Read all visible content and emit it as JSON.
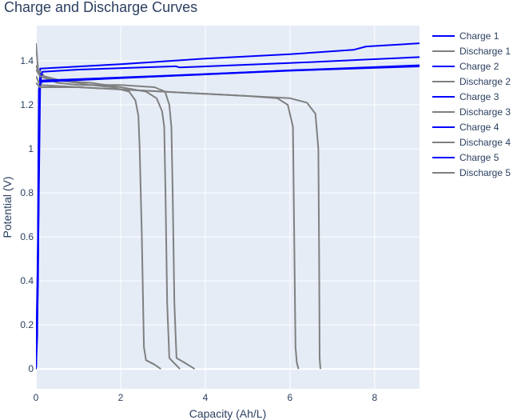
{
  "chart_data": {
    "type": "line",
    "title": "Charge and Discharge Curves",
    "xlabel": "Capacity (Ah/L)",
    "ylabel": "Potential (V)",
    "xlim": [
      0,
      9.06
    ],
    "ylim": [
      -0.09,
      1.56
    ],
    "xticks": [
      0,
      2,
      4,
      6,
      8
    ],
    "yticks": [
      0,
      0.2,
      0.4,
      0.6,
      0.8,
      1,
      1.2,
      1.4
    ],
    "ytick_labels": [
      "0",
      "0.2",
      "0.4",
      "0.6",
      "0.8",
      "1",
      "1.2",
      "1.4"
    ],
    "grid": true,
    "legend_position": "right",
    "colors": {
      "charge": "#0000ff",
      "discharge": "#808080",
      "plot_bg": "#e5ecf6"
    },
    "series": [
      {
        "name": "Charge 1",
        "kind": "charge",
        "x": [
          0,
          0.05,
          0.08,
          0.1,
          2,
          4,
          6,
          7.5,
          7.8,
          9.1
        ],
        "y": [
          0,
          0.4,
          1.2,
          1.365,
          1.385,
          1.41,
          1.43,
          1.45,
          1.465,
          1.48
        ]
      },
      {
        "name": "Discharge 1",
        "kind": "discharge",
        "x": [
          0,
          0.05,
          0.2,
          0.6,
          1.3,
          1.8,
          2.2,
          2.35,
          2.42,
          2.45,
          2.5,
          2.55,
          2.6,
          2.8,
          2.95
        ],
        "y": [
          1.48,
          1.36,
          1.33,
          1.31,
          1.29,
          1.28,
          1.26,
          1.22,
          1.15,
          1.0,
          0.6,
          0.1,
          0.04,
          0.02,
          0
        ]
      },
      {
        "name": "Charge 2",
        "kind": "charge",
        "x": [
          0,
          0.05,
          0.1,
          0.15,
          1,
          3.3,
          3.4,
          6,
          9.1
        ],
        "y": [
          0,
          0.5,
          1.3,
          1.35,
          1.36,
          1.375,
          1.37,
          1.39,
          1.417
        ]
      },
      {
        "name": "Discharge 2",
        "kind": "discharge",
        "x": [
          0,
          0.1,
          0.5,
          1.3,
          2.0,
          2.6,
          2.85,
          2.98,
          3.03,
          3.06,
          3.1,
          3.15,
          3.3,
          3.4
        ],
        "y": [
          1.38,
          1.33,
          1.31,
          1.3,
          1.28,
          1.26,
          1.23,
          1.17,
          1.1,
          0.8,
          0.3,
          0.05,
          0.02,
          0
        ]
      },
      {
        "name": "Charge 3",
        "kind": "charge",
        "x": [
          0,
          0.04,
          0.08,
          0.12,
          3,
          6,
          9.1
        ],
        "y": [
          0,
          0.3,
          1.25,
          1.31,
          1.33,
          1.355,
          1.375
        ]
      },
      {
        "name": "Discharge 3",
        "kind": "discharge",
        "x": [
          0,
          0.1,
          0.5,
          1.0,
          2.0,
          2.8,
          3.05,
          3.15,
          3.2,
          3.23,
          3.27,
          3.32,
          3.5,
          3.75
        ],
        "y": [
          1.36,
          1.33,
          1.3,
          1.29,
          1.29,
          1.28,
          1.26,
          1.2,
          1.1,
          0.8,
          0.3,
          0.05,
          0.03,
          0
        ]
      },
      {
        "name": "Charge 4",
        "kind": "charge",
        "x": [
          0,
          0.05,
          0.09,
          0.13,
          3,
          6,
          9.1
        ],
        "y": [
          0,
          0.6,
          1.28,
          1.305,
          1.33,
          1.357,
          1.38
        ]
      },
      {
        "name": "Discharge 4",
        "kind": "discharge",
        "x": [
          0,
          0.1,
          1,
          2,
          3,
          4,
          5,
          5.7,
          5.95,
          6.07,
          6.1,
          6.13,
          6.16,
          6.2
        ],
        "y": [
          1.33,
          1.29,
          1.28,
          1.27,
          1.26,
          1.25,
          1.24,
          1.23,
          1.2,
          1.1,
          0.6,
          0.1,
          0.03,
          0
        ]
      },
      {
        "name": "Charge 5",
        "kind": "charge",
        "x": [
          0,
          0.03,
          0.07,
          0.11,
          3,
          6,
          9.1
        ],
        "y": [
          0,
          0.15,
          1.27,
          1.31,
          1.332,
          1.356,
          1.378
        ]
      },
      {
        "name": "Discharge 5",
        "kind": "discharge",
        "x": [
          0,
          0.1,
          1,
          2,
          3,
          4,
          5,
          6,
          6.4,
          6.6,
          6.67,
          6.69,
          6.7,
          6.72
        ],
        "y": [
          1.3,
          1.28,
          1.28,
          1.27,
          1.26,
          1.25,
          1.24,
          1.23,
          1.21,
          1.16,
          1.0,
          0.5,
          0.05,
          0
        ]
      }
    ]
  }
}
